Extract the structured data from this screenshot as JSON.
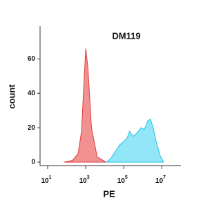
{
  "chart_data": {
    "type": "histogram-overlay",
    "title": "DM119",
    "xlabel": "PE",
    "ylabel": "count",
    "log_x": true,
    "xlim": [
      4,
      100000000
    ],
    "ylim": [
      -2,
      79
    ],
    "xticks": [
      {
        "value": 10,
        "label": "10",
        "sup": "1"
      },
      {
        "value": 1000,
        "label": "10",
        "sup": "3"
      },
      {
        "value": 100000,
        "label": "10",
        "sup": "5"
      },
      {
        "value": 10000000,
        "label": "10",
        "sup": "7"
      }
    ],
    "yticks": [
      0,
      20,
      40,
      60
    ],
    "series": [
      {
        "color": "#f08585",
        "stroke": "#e03c3c",
        "x": [
          70,
          200,
          400,
          600,
          800,
          1000,
          1300,
          2000,
          4000,
          12000
        ],
        "values": [
          0,
          1,
          5,
          18,
          45,
          66,
          55,
          20,
          3,
          0
        ]
      },
      {
        "color": "#86e3f7",
        "stroke": "#1fc4e0",
        "x": [
          12000,
          20000,
          35000,
          60000,
          100000,
          150000,
          200000,
          300000,
          500000,
          800000,
          1200000,
          1800000,
          2500000,
          3500000,
          5000000,
          8000000,
          12000000
        ],
        "values": [
          0,
          2,
          6,
          10,
          12,
          14,
          18,
          15,
          17,
          20,
          19,
          24,
          25,
          20,
          12,
          4,
          0
        ]
      }
    ]
  }
}
